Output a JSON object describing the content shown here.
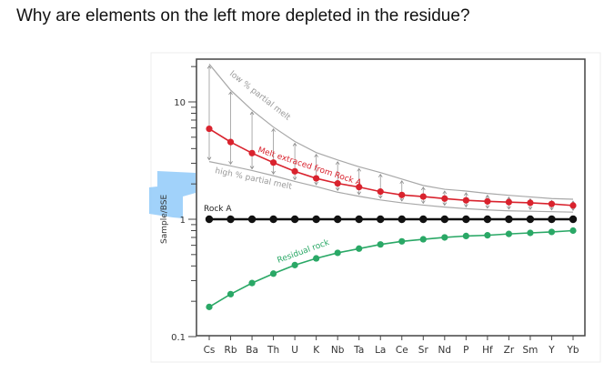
{
  "question": "Why are elements on the left more depleted in the residue?",
  "chart_data": {
    "type": "line",
    "title": "",
    "xlabel": "",
    "ylabel": "Sample/BSE",
    "yscale": "log",
    "ylim": [
      0.1,
      22
    ],
    "yticks": [
      {
        "value": 10,
        "label": "10"
      },
      {
        "value": 1,
        "label": "1"
      },
      {
        "value": 0.1,
        "label": "0.1"
      }
    ],
    "categories": [
      "Cs",
      "Rb",
      "Ba",
      "Th",
      "U",
      "K",
      "Nb",
      "Ta",
      "La",
      "Ce",
      "Sr",
      "Nd",
      "P",
      "Hf",
      "Zr",
      "Sm",
      "Y",
      "Yb"
    ],
    "series": [
      {
        "name": "Melt extraced from Rock A",
        "color": "#d9232e",
        "values": [
          5.9,
          4.55,
          3.66,
          3.04,
          2.56,
          2.23,
          2.02,
          1.88,
          1.72,
          1.61,
          1.56,
          1.5,
          1.45,
          1.42,
          1.4,
          1.38,
          1.35,
          1.31
        ]
      },
      {
        "name": "Rock A",
        "color": "#111111",
        "values": [
          1,
          1,
          1,
          1,
          1,
          1,
          1,
          1,
          1,
          1,
          1,
          1,
          1,
          1,
          1,
          1,
          1,
          1
        ]
      },
      {
        "name": "Residual rock",
        "color": "#2aa866",
        "values": [
          0.179,
          0.23,
          0.286,
          0.344,
          0.407,
          0.464,
          0.517,
          0.562,
          0.61,
          0.648,
          0.675,
          0.7,
          0.72,
          0.73,
          0.75,
          0.765,
          0.78,
          0.8
        ]
      }
    ],
    "envelopes": [
      {
        "name": "low % partial melt",
        "color": "#a8a8a8",
        "values": [
          21,
          12.6,
          8.5,
          6.1,
          4.6,
          3.7,
          3.2,
          2.8,
          2.5,
          2.2,
          1.94,
          1.8,
          1.74,
          1.66,
          1.6,
          1.55,
          1.5,
          1.48
        ]
      },
      {
        "name": "high % partial melt",
        "color": "#a8a8a8",
        "values": [
          3.1,
          2.85,
          2.6,
          2.35,
          2.1,
          1.9,
          1.7,
          1.57,
          1.46,
          1.38,
          1.32,
          1.27,
          1.23,
          1.2,
          1.18,
          1.17,
          1.16,
          1.15
        ]
      }
    ],
    "grid": false,
    "legend": "none (inline labels)"
  },
  "highlight_color": "#90caf9"
}
